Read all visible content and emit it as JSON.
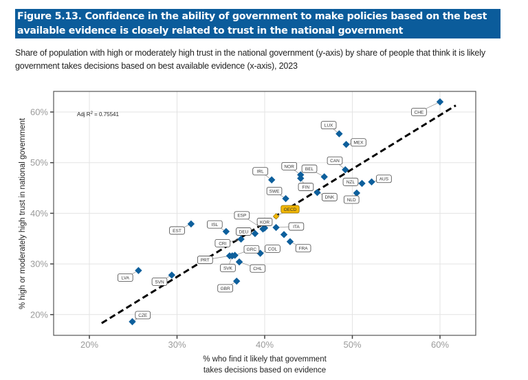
{
  "header": {
    "title": "Figure 5.13. Confidence in the ability of government to make policies based on the best available evidence is closely related to trust in the national government",
    "subtitle": "Share of population with high or moderately high trust in the national government (y-axis) by share of people that think it is likely government takes decisions based on best available evidence (x-axis), 2023"
  },
  "colors": {
    "title_bg": "#0b5c9b",
    "point": "#0d5f9c",
    "oecd": "#f2b705",
    "fit_line": "#000000"
  },
  "chart_data": {
    "type": "scatter",
    "title": "Figure 5.13. Confidence in the ability of government to make policies based on the best available evidence is closely related to trust in the national government",
    "xlabel": "% who find it likely that government takes decisions based on evidence",
    "xlabel_lines": [
      "% who find it likely that govemment",
      "takes decisions based on evidence"
    ],
    "ylabel": "% high or moderately high trust in national govemment",
    "xlim": [
      16,
      64
    ],
    "ylim": [
      17,
      64
    ],
    "xticks": [
      20,
      30,
      40,
      50,
      60
    ],
    "yticks": [
      20,
      30,
      40,
      50,
      60
    ],
    "xtick_labels": [
      "20%",
      "30%",
      "40%",
      "50%",
      "60%"
    ],
    "ytick_labels": [
      "20%",
      "30%",
      "40%",
      "50%",
      "60%"
    ],
    "grid": true,
    "annotation": {
      "text_prefix": "Adj R",
      "superscript": "2",
      "text_suffix": " = 0.75541"
    },
    "fit_line": {
      "style": "dashed",
      "x": [
        21.4,
        61.8
      ],
      "y": [
        18.3,
        61.3
      ]
    },
    "points": [
      {
        "label": "CHE",
        "x": 60.0,
        "y": 62.0,
        "lx": 57.6,
        "ly": 60.0
      },
      {
        "label": "LUX",
        "x": 48.5,
        "y": 55.7,
        "lx": 47.3,
        "ly": 57.4
      },
      {
        "label": "MEX",
        "x": 49.3,
        "y": 53.6,
        "lx": 50.7,
        "ly": 54.0
      },
      {
        "label": "CAN",
        "x": 49.2,
        "y": 48.6,
        "lx": 48.0,
        "ly": 50.4
      },
      {
        "label": "NOR",
        "x": 44.1,
        "y": 47.6,
        "lx": 42.8,
        "ly": 49.3
      },
      {
        "label": "BEL",
        "x": 46.8,
        "y": 47.2,
        "lx": 45.1,
        "ly": 48.8
      },
      {
        "label": "FIN",
        "x": 44.1,
        "y": 46.9,
        "lx": 44.7,
        "ly": 45.2
      },
      {
        "label": "IRL",
        "x": 40.8,
        "y": 46.6,
        "lx": 39.5,
        "ly": 48.3
      },
      {
        "label": "AUS",
        "x": 52.2,
        "y": 46.2,
        "lx": 53.6,
        "ly": 46.8
      },
      {
        "label": "NZL",
        "x": 51.1,
        "y": 45.9,
        "lx": 49.8,
        "ly": 46.2
      },
      {
        "label": "DNK",
        "x": 46.0,
        "y": 44.1,
        "lx": 47.4,
        "ly": 43.2
      },
      {
        "label": "NLD",
        "x": 50.5,
        "y": 44.0,
        "lx": 49.9,
        "ly": 42.7
      },
      {
        "label": "SWE",
        "x": 42.4,
        "y": 42.9,
        "lx": 41.1,
        "ly": 44.4
      },
      {
        "label": "OECD",
        "x": 41.3,
        "y": 39.4,
        "lx": 42.9,
        "ly": 40.8,
        "highlight": true
      },
      {
        "label": "EST",
        "x": 31.6,
        "y": 37.9,
        "lx": 30.0,
        "ly": 36.6
      },
      {
        "label": "ESP",
        "x": 39.8,
        "y": 36.9,
        "lx": 37.4,
        "ly": 39.6
      },
      {
        "label": "KOR",
        "x": 40.0,
        "y": 37.1,
        "lx": 40.0,
        "ly": 38.3
      },
      {
        "label": "ITA",
        "x": 41.3,
        "y": 37.2,
        "lx": 43.6,
        "ly": 37.4
      },
      {
        "label": "ISL",
        "x": 35.6,
        "y": 36.4,
        "lx": 34.3,
        "ly": 37.8
      },
      {
        "label": "DEU",
        "x": 38.9,
        "y": 36.0,
        "lx": 37.6,
        "ly": 36.4
      },
      {
        "label": "(unlabelled)",
        "x": 42.2,
        "y": 35.8,
        "lx": null,
        "ly": null
      },
      {
        "label": "CRI",
        "x": 37.3,
        "y": 34.9,
        "lx": 35.2,
        "ly": 34.1
      },
      {
        "label": "FRA",
        "x": 42.9,
        "y": 34.4,
        "lx": 44.4,
        "ly": 33.1
      },
      {
        "label": "COL",
        "x": 39.5,
        "y": 32.1,
        "lx": 40.9,
        "ly": 33.0
      },
      {
        "label": "GRC",
        "x": 36.6,
        "y": 31.7,
        "lx": 38.5,
        "ly": 32.9
      },
      {
        "label": "PRT",
        "x": 36.0,
        "y": 31.6,
        "lx": 33.2,
        "ly": 30.8
      },
      {
        "label": "SVK",
        "x": 36.3,
        "y": 31.6,
        "lx": 35.8,
        "ly": 29.2
      },
      {
        "label": "CHL",
        "x": 37.1,
        "y": 30.4,
        "lx": 39.2,
        "ly": 29.1
      },
      {
        "label": "LVA",
        "x": 25.6,
        "y": 28.7,
        "lx": 24.1,
        "ly": 27.3
      },
      {
        "label": "SVN",
        "x": 29.4,
        "y": 27.8,
        "lx": 28.0,
        "ly": 26.5
      },
      {
        "label": "GBR",
        "x": 36.8,
        "y": 26.6,
        "lx": 35.5,
        "ly": 25.2
      },
      {
        "label": "CZE",
        "x": 24.9,
        "y": 18.6,
        "lx": 26.1,
        "ly": 19.9
      }
    ]
  }
}
